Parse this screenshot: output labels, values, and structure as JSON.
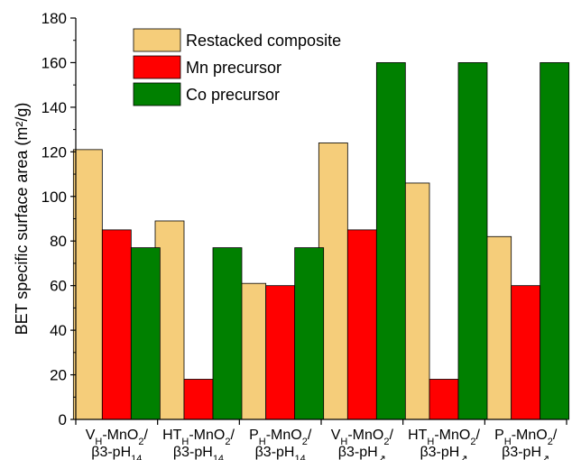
{
  "chart_data": {
    "type": "bar",
    "ylabel": "BET specific surface area (m²/g)",
    "ylim": [
      0,
      180
    ],
    "yticks": [
      0,
      20,
      40,
      60,
      80,
      100,
      120,
      140,
      160,
      180
    ],
    "categories": [
      {
        "line1": "V",
        "sub1": "H",
        "mid1": "-MnO",
        "sub2": "2",
        "end1": "/",
        "line2": "β3-pH",
        "sub3": "14"
      },
      {
        "line1": "HT",
        "sub1": "H",
        "mid1": "-MnO",
        "sub2": "2",
        "end1": "/",
        "line2": "β3-pH",
        "sub3": "14"
      },
      {
        "line1": "P",
        "sub1": "H",
        "mid1": "-MnO",
        "sub2": "2",
        "end1": "/",
        "line2": "β3-pH",
        "sub3": "14"
      },
      {
        "line1": "V",
        "sub1": "H",
        "mid1": "-MnO",
        "sub2": "2",
        "end1": "/",
        "line2": "β3-pH",
        "sub3": "↗"
      },
      {
        "line1": "HT",
        "sub1": "H",
        "mid1": "-MnO",
        "sub2": "2",
        "end1": "/",
        "line2": "β3-pH",
        "sub3": "↗"
      },
      {
        "line1": "P",
        "sub1": "H",
        "mid1": "-MnO",
        "sub2": "2",
        "end1": "/",
        "line2": "β3-pH",
        "sub3": "↗"
      }
    ],
    "series": [
      {
        "name": "Restacked composite",
        "color": "#F5CD7A",
        "values": [
          121,
          89,
          61,
          124,
          106,
          82
        ]
      },
      {
        "name": "Mn precursor",
        "color": "#FF0000",
        "values": [
          85,
          18,
          60,
          85,
          18,
          60
        ]
      },
      {
        "name": "Co precursor",
        "color": "#008000",
        "values": [
          77,
          77,
          77,
          160,
          160,
          160
        ]
      }
    ],
    "legend_position": "top-left",
    "grid": false
  }
}
